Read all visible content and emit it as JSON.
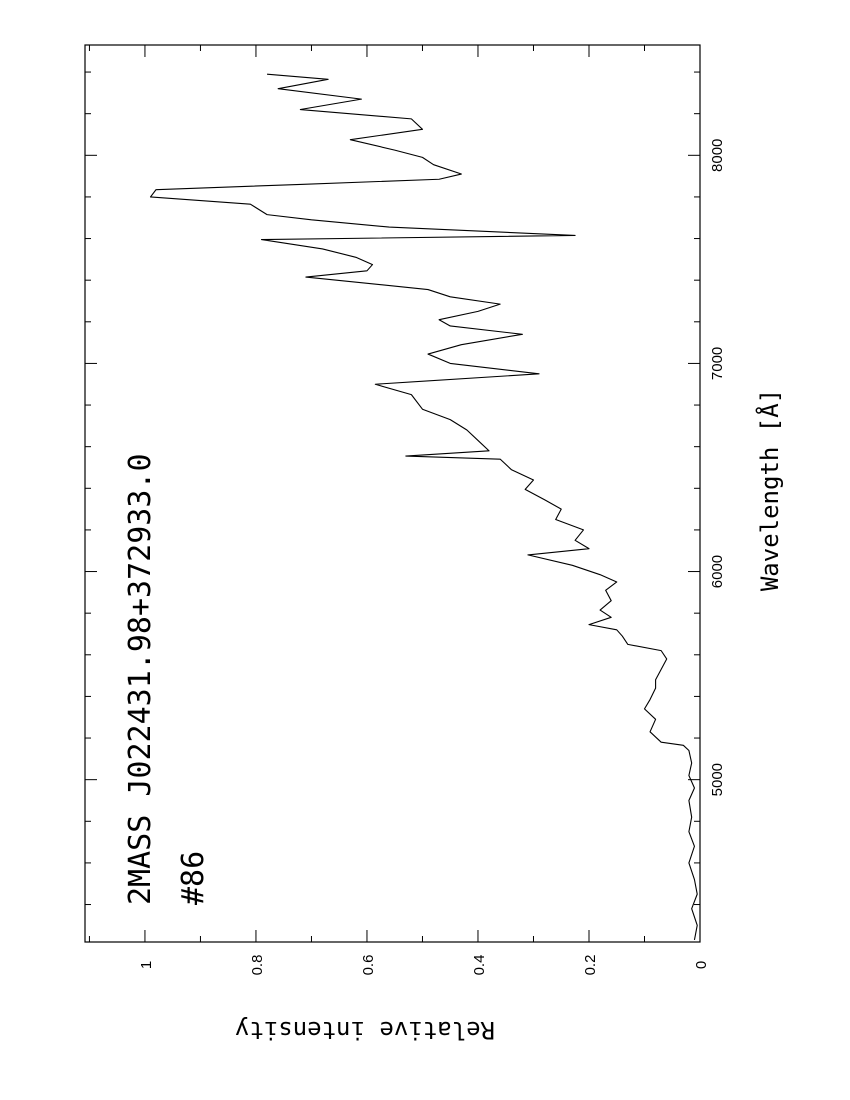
{
  "chart_data": {
    "type": "line",
    "orientation": "rotated-90",
    "title": "2MASS J022431.98+372933.0",
    "subtitle": "#86",
    "x_label": "Wavelength   [Å]",
    "y_label": "Relative intensity",
    "color": "#000000",
    "x": [
      4230,
      4300,
      4380,
      4450,
      4520,
      4600,
      4680,
      4750,
      4820,
      4900,
      4960,
      5020,
      5080,
      5140,
      5165,
      5180,
      5230,
      5290,
      5340,
      5385,
      5440,
      5480,
      5530,
      5580,
      5620,
      5650,
      5690,
      5720,
      5745,
      5780,
      5815,
      5860,
      5910,
      5950,
      5985,
      6030,
      6080,
      6110,
      6150,
      6200,
      6250,
      6300,
      6345,
      6395,
      6440,
      6490,
      6540,
      6555,
      6580,
      6630,
      6680,
      6730,
      6780,
      6850,
      6900,
      6950,
      7000,
      7045,
      7090,
      7140,
      7180,
      7210,
      7250,
      7285,
      7320,
      7355,
      7415,
      7445,
      7475,
      7510,
      7550,
      7595,
      7615,
      7655,
      7690,
      7715,
      7765,
      7800,
      7835,
      7860,
      7885,
      7910,
      7955,
      7990,
      8025,
      8075,
      8125,
      8175,
      8220,
      8270,
      8320,
      8365,
      8390
    ],
    "values": [
      0.01,
      0.005,
      0.015,
      0.005,
      0.01,
      0.02,
      0.01,
      0.02,
      0.015,
      0.02,
      0.01,
      0.02,
      0.015,
      0.02,
      0.03,
      0.07,
      0.09,
      0.08,
      0.1,
      0.09,
      0.08,
      0.08,
      0.07,
      0.06,
      0.07,
      0.13,
      0.14,
      0.15,
      0.2,
      0.16,
      0.18,
      0.16,
      0.17,
      0.15,
      0.18,
      0.23,
      0.31,
      0.2,
      0.225,
      0.21,
      0.26,
      0.25,
      0.28,
      0.315,
      0.3,
      0.34,
      0.36,
      0.53,
      0.38,
      0.4,
      0.42,
      0.45,
      0.5,
      0.52,
      0.585,
      0.29,
      0.45,
      0.49,
      0.43,
      0.32,
      0.45,
      0.47,
      0.4,
      0.36,
      0.45,
      0.49,
      0.71,
      0.6,
      0.59,
      0.62,
      0.68,
      0.79,
      0.225,
      0.56,
      0.7,
      0.78,
      0.81,
      0.99,
      0.98,
      0.72,
      0.47,
      0.43,
      0.48,
      0.5,
      0.55,
      0.63,
      0.5,
      0.52,
      0.72,
      0.61,
      0.76,
      0.67,
      0.78
    ],
    "xlim": [
      4220,
      8530
    ],
    "ylim": [
      0,
      1.108
    ],
    "xticks": [
      5000,
      6000,
      7000,
      8000
    ],
    "xminor_ticks": [
      4400,
      4600,
      4800,
      5200,
      5400,
      5600,
      5800,
      6200,
      6400,
      6600,
      6800,
      7200,
      7400,
      7600,
      7800,
      8200,
      8400
    ],
    "yticks": [
      0,
      0.2,
      0.4,
      0.6,
      0.8,
      1
    ],
    "yminor_ticks": [
      0.1,
      0.3,
      0.5,
      0.7,
      0.9,
      1.1
    ]
  }
}
